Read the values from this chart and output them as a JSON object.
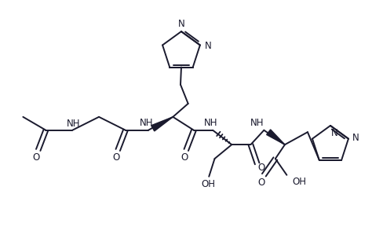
{
  "background_color": "#ffffff",
  "line_color": "#1a1a2e",
  "line_width": 1.4,
  "font_size": 8.5,
  "fig_width": 4.89,
  "fig_height": 3.17,
  "dpi": 100,
  "xlim": [
    0,
    10
  ],
  "ylim": [
    0,
    6.5
  ]
}
